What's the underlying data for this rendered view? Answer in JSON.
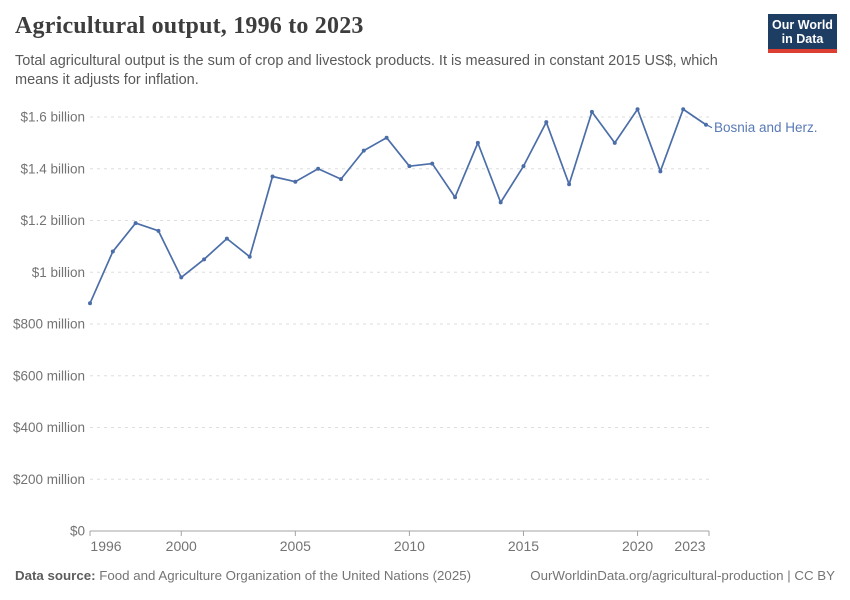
{
  "header": {
    "title": "Agricultural output, 1996 to 2023",
    "subtitle_lines": [
      "Total agricultural output is the sum of crop and livestock products. It is measured in constant 2015 US$, which",
      "means it adjusts for inflation."
    ],
    "logo": {
      "line1": "Our World",
      "line2": "in Data",
      "bg_color": "#1d3d63",
      "accent_color": "#dc3e32"
    }
  },
  "chart_data": {
    "type": "line",
    "title": "Agricultural output, 1996 to 2023",
    "xlabel": "",
    "ylabel": "",
    "xlim": [
      1996,
      2023
    ],
    "ylim_usd_billion": [
      0,
      1.6
    ],
    "grid": "horizontal-dashed",
    "legend_position": "end-of-line-label",
    "x": [
      1996,
      1997,
      1998,
      1999,
      2000,
      2001,
      2002,
      2003,
      2004,
      2005,
      2006,
      2007,
      2008,
      2009,
      2010,
      2011,
      2012,
      2013,
      2014,
      2015,
      2016,
      2017,
      2018,
      2019,
      2020,
      2021,
      2022,
      2023
    ],
    "series": [
      {
        "name": "Bosnia and Herz.",
        "color": "#4c6ea8",
        "label_color": "#587ab5",
        "values_usd_billion": [
          0.88,
          1.08,
          1.19,
          1.16,
          0.98,
          1.05,
          1.13,
          1.06,
          1.37,
          1.35,
          1.4,
          1.36,
          1.47,
          1.52,
          1.41,
          1.42,
          1.29,
          1.5,
          1.27,
          1.41,
          1.58,
          1.34,
          1.62,
          1.5,
          1.63,
          1.39,
          1.63,
          1.57
        ]
      }
    ],
    "x_ticks": [
      {
        "year": 1996,
        "label": "1996"
      },
      {
        "year": 2000,
        "label": "2000"
      },
      {
        "year": 2005,
        "label": "2005"
      },
      {
        "year": 2010,
        "label": "2010"
      },
      {
        "year": 2015,
        "label": "2015"
      },
      {
        "year": 2020,
        "label": "2020"
      },
      {
        "year": 2023,
        "label": "2023"
      }
    ],
    "y_ticks": [
      {
        "value_billion": 0,
        "label": "$0"
      },
      {
        "value_billion": 0.2,
        "label": "$200 million"
      },
      {
        "value_billion": 0.4,
        "label": "$400 million"
      },
      {
        "value_billion": 0.6,
        "label": "$600 million"
      },
      {
        "value_billion": 0.8,
        "label": "$800 million"
      },
      {
        "value_billion": 1.0,
        "label": "$1 billion"
      },
      {
        "value_billion": 1.2,
        "label": "$1.2 billion"
      },
      {
        "value_billion": 1.4,
        "label": "$1.4 billion"
      },
      {
        "value_billion": 1.6,
        "label": "$1.6 billion"
      }
    ],
    "colors": {
      "gridline": "#dedede",
      "axis": "#a3a3a3",
      "tick_label": "#737373"
    }
  },
  "footer": {
    "source_label": "Data source:",
    "source_text": " Food and Agriculture Organization of the United Nations (2025)",
    "link_text": "OurWorldinData.org/agricultural-production | CC BY"
  }
}
